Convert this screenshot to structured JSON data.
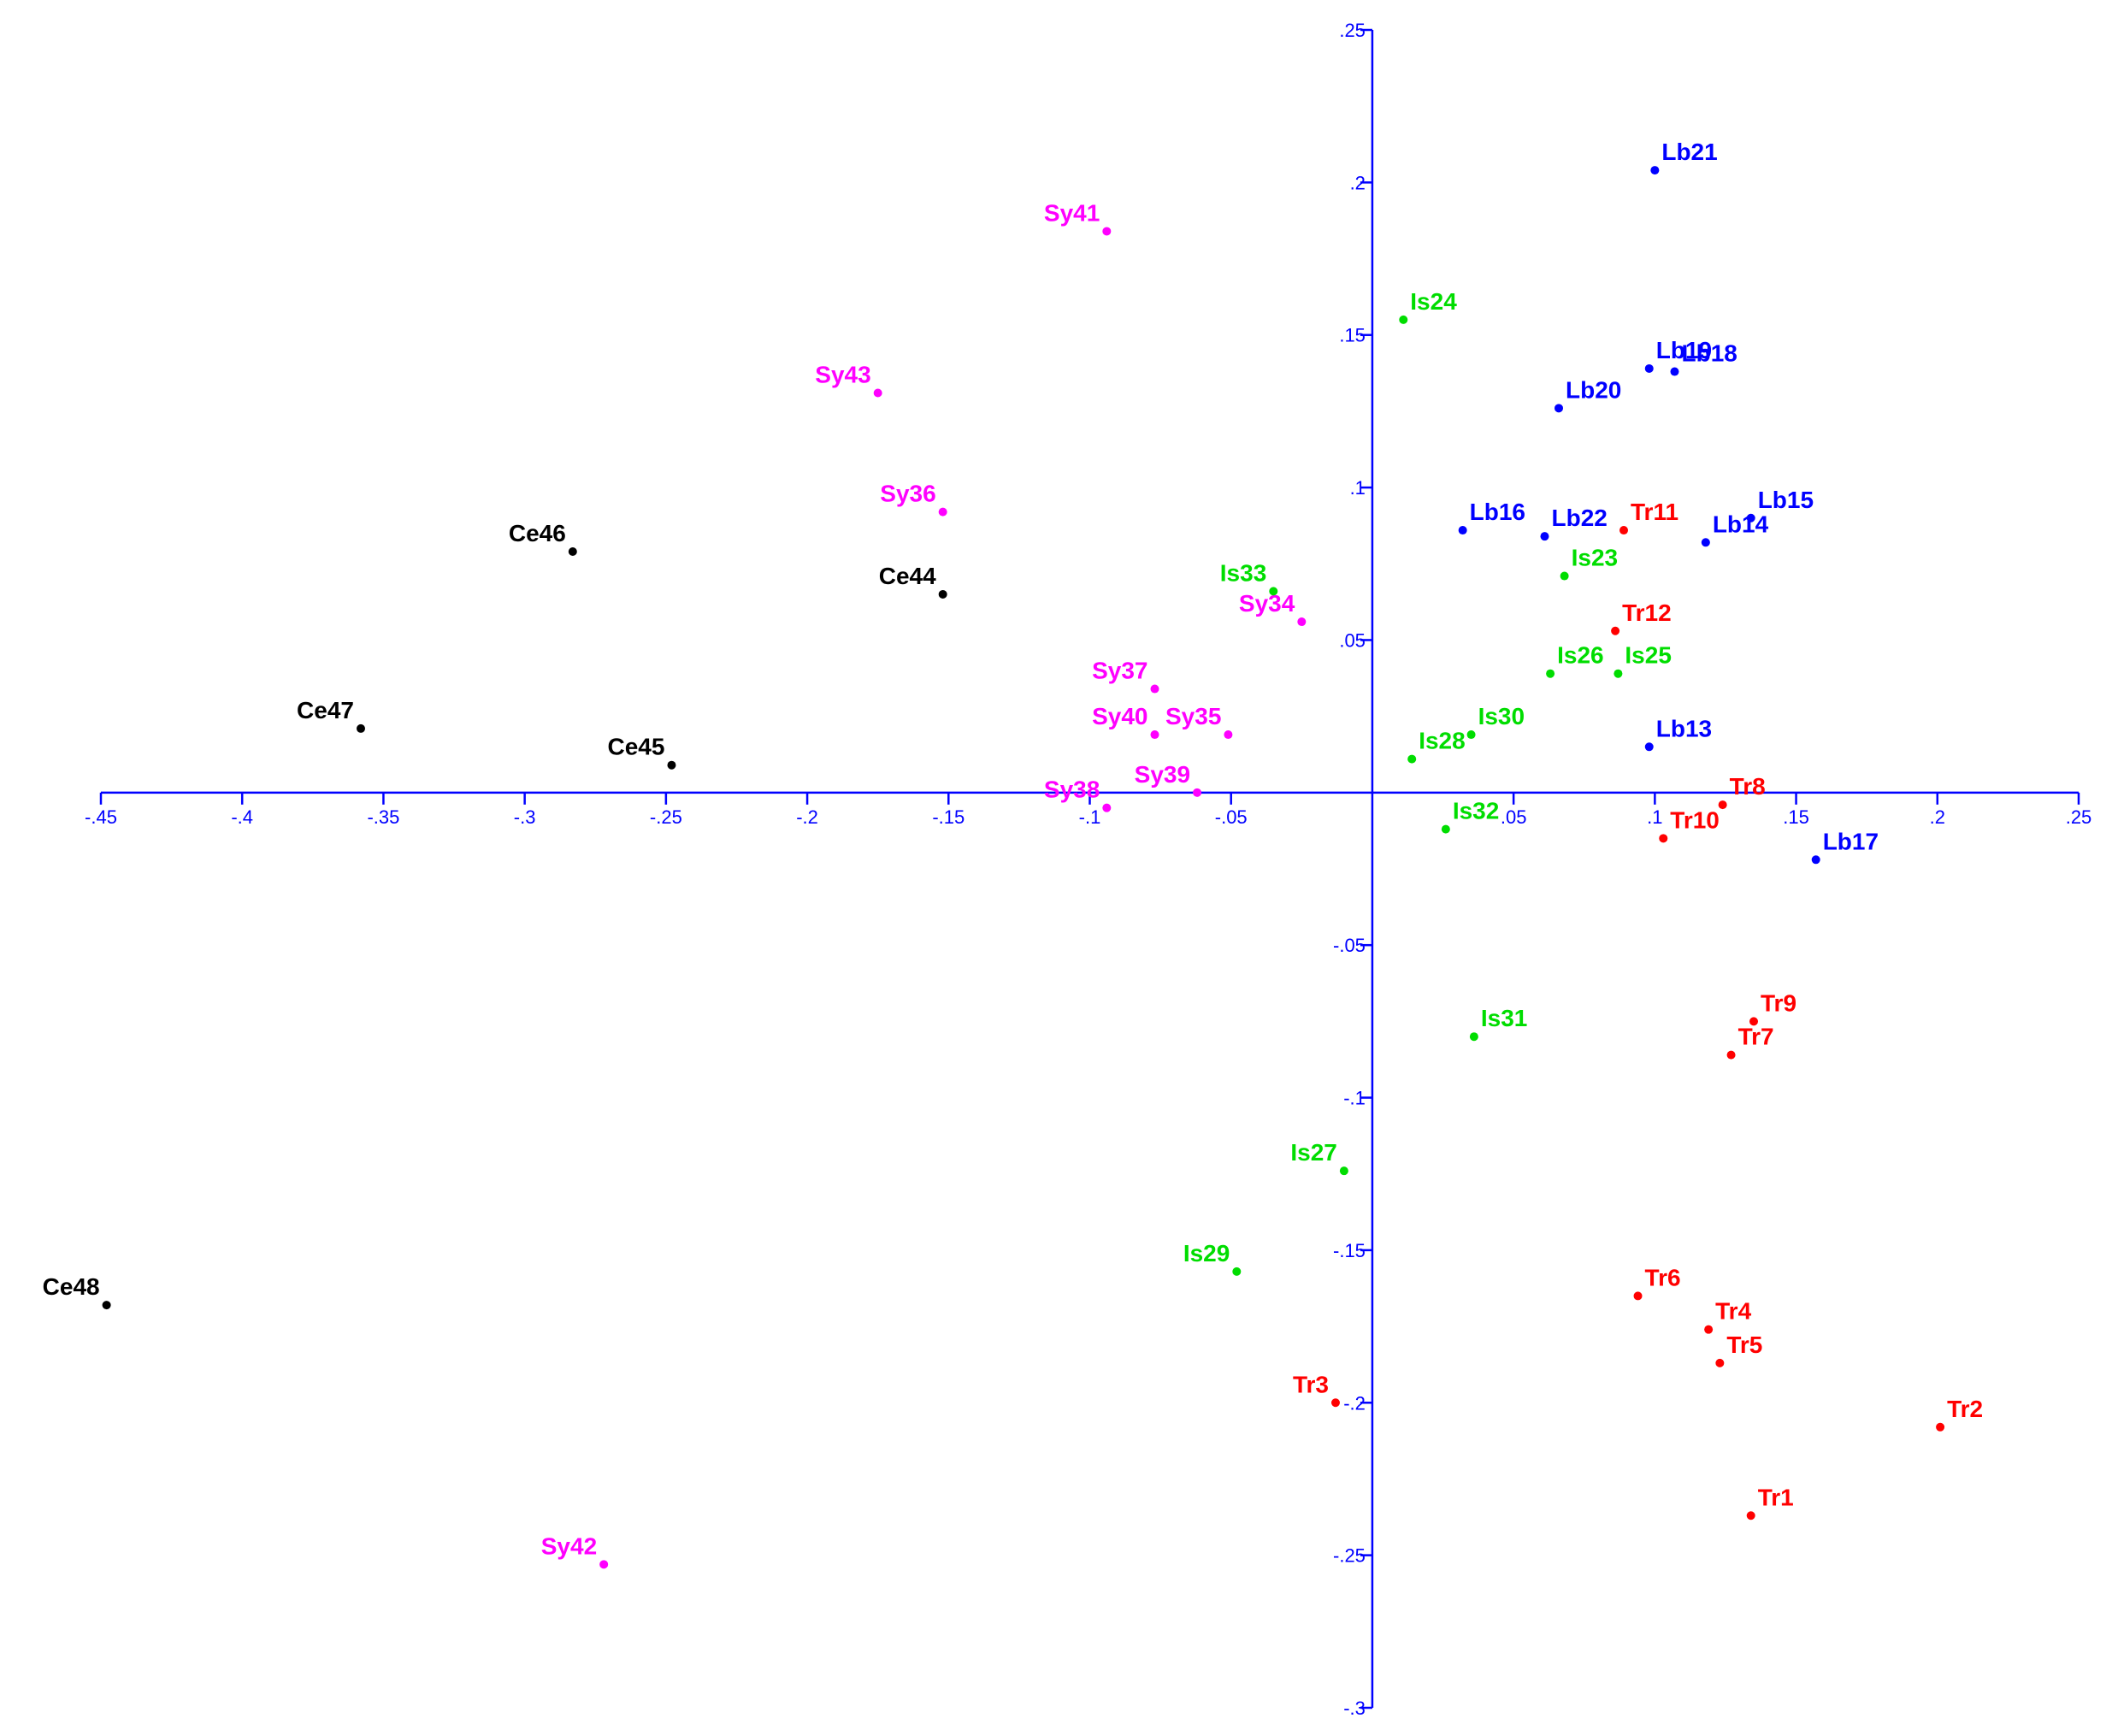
{
  "chart_data": {
    "type": "scatter",
    "xlim": [
      -0.45,
      0.25
    ],
    "ylim": [
      -0.3,
      0.25
    ],
    "xticks": [
      {
        "value": -0.45,
        "label": "-.45"
      },
      {
        "value": -0.4,
        "label": "-.4"
      },
      {
        "value": -0.35,
        "label": "-.35"
      },
      {
        "value": -0.3,
        "label": "-.3"
      },
      {
        "value": -0.25,
        "label": "-.25"
      },
      {
        "value": -0.2,
        "label": "-.2"
      },
      {
        "value": -0.15,
        "label": "-.15"
      },
      {
        "value": -0.1,
        "label": "-.1"
      },
      {
        "value": -0.05,
        "label": "-.05"
      },
      {
        "value": 0.05,
        "label": ".05"
      },
      {
        "value": 0.1,
        "label": ".1"
      },
      {
        "value": 0.15,
        "label": ".15"
      },
      {
        "value": 0.2,
        "label": ".2"
      },
      {
        "value": 0.25,
        "label": ".25"
      }
    ],
    "yticks": [
      {
        "value": 0.25,
        "label": ".25"
      },
      {
        "value": 0.2,
        "label": ".2"
      },
      {
        "value": 0.15,
        "label": ".15"
      },
      {
        "value": 0.1,
        "label": ".1"
      },
      {
        "value": 0.05,
        "label": ".05"
      },
      {
        "value": -0.05,
        "label": "-.05"
      },
      {
        "value": -0.1,
        "label": "-.1"
      },
      {
        "value": -0.15,
        "label": "-.15"
      },
      {
        "value": -0.2,
        "label": "-.2"
      },
      {
        "value": -0.25,
        "label": "-.25"
      },
      {
        "value": -0.3,
        "label": "-.3"
      }
    ],
    "axis_color": "#0000ff",
    "series": [
      {
        "color": "#000000",
        "labels": [
          "Ce46",
          "Ce44",
          "Ce47",
          "Ce45",
          "Ce48"
        ],
        "x": [
          -0.283,
          -0.152,
          -0.358,
          -0.248,
          -0.448
        ],
        "values": [
          0.079,
          0.065,
          0.021,
          0.009,
          -0.168
        ]
      },
      {
        "color": "#ff00ff",
        "labels": [
          "Sy41",
          "Sy43",
          "Sy36",
          "Sy34",
          "Sy37",
          "Sy40",
          "Sy35",
          "Sy39",
          "Sy38",
          "Sy42"
        ],
        "x": [
          -0.094,
          -0.175,
          -0.152,
          -0.025,
          -0.077,
          -0.077,
          -0.051,
          -0.062,
          -0.094,
          -0.272
        ],
        "values": [
          0.184,
          0.131,
          0.092,
          0.056,
          0.034,
          0.019,
          0.019,
          0.0,
          -0.005,
          -0.253
        ]
      },
      {
        "color": "#00dd00",
        "labels": [
          "Is24",
          "Is23",
          "Is33",
          "Is26",
          "Is25",
          "Is30",
          "Is28",
          "Is32",
          "Is31",
          "Is27",
          "Is29"
        ],
        "x": [
          0.011,
          0.068,
          -0.035,
          0.063,
          0.087,
          0.035,
          0.014,
          0.026,
          0.036,
          -0.01,
          -0.048
        ],
        "values": [
          0.155,
          0.071,
          0.066,
          0.039,
          0.039,
          0.019,
          0.011,
          -0.012,
          -0.08,
          -0.124,
          -0.157
        ]
      },
      {
        "color": "#0000ff",
        "labels": [
          "Lb21",
          "Lb19",
          "Lb18",
          "Lb20",
          "Lb16",
          "Lb22",
          "Lb14",
          "Lb15",
          "Lb13",
          "Lb17"
        ],
        "x": [
          0.1,
          0.098,
          0.107,
          0.066,
          0.032,
          0.061,
          0.118,
          0.134,
          0.098,
          0.157
        ],
        "values": [
          0.204,
          0.139,
          0.138,
          0.126,
          0.086,
          0.084,
          0.082,
          0.09,
          0.015,
          -0.022
        ]
      },
      {
        "color": "#ff0000",
        "labels": [
          "Tr11",
          "Tr12",
          "Tr8",
          "Tr10",
          "Tr9",
          "Tr7",
          "Tr6",
          "Tr4",
          "Tr5",
          "Tr3",
          "Tr2",
          "Tr1"
        ],
        "x": [
          0.089,
          0.086,
          0.124,
          0.103,
          0.135,
          0.127,
          0.094,
          0.119,
          0.123,
          -0.013,
          0.201,
          0.134
        ],
        "values": [
          0.086,
          0.053,
          -0.004,
          -0.015,
          -0.075,
          -0.086,
          -0.165,
          -0.176,
          -0.187,
          -0.2,
          -0.208,
          -0.237
        ]
      }
    ]
  }
}
